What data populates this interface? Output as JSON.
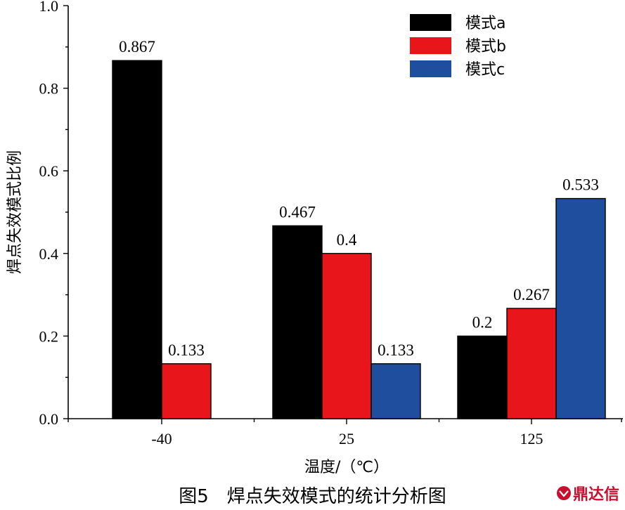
{
  "chart_data": {
    "type": "bar",
    "categories": [
      "-40",
      "25",
      "125"
    ],
    "series": [
      {
        "name": "模式a",
        "color": "#000000",
        "values": [
          0.867,
          0.467,
          0.2
        ]
      },
      {
        "name": "模式b",
        "color": "#e8151b",
        "values": [
          0.133,
          0.4,
          0.267
        ]
      },
      {
        "name": "模式c",
        "color": "#1f4e9f",
        "values": [
          null,
          0.133,
          0.533
        ]
      }
    ],
    "value_labels": [
      [
        "0.867",
        "0.467",
        "0.2"
      ],
      [
        "0.133",
        "0.4",
        "0.267"
      ],
      [
        "",
        "0.133",
        "0.533"
      ]
    ],
    "xlabel": "温度/（℃）",
    "ylabel": "焊点失效模式比例",
    "ylim": [
      0,
      1.0
    ],
    "yticks": [
      "0.0",
      "0.2",
      "0.4",
      "0.6",
      "0.8",
      "1.0"
    ],
    "legend_position": "top-right",
    "grid": false
  },
  "caption": "图5　焊点失效模式的统计分析图",
  "watermark": "鼎达信"
}
